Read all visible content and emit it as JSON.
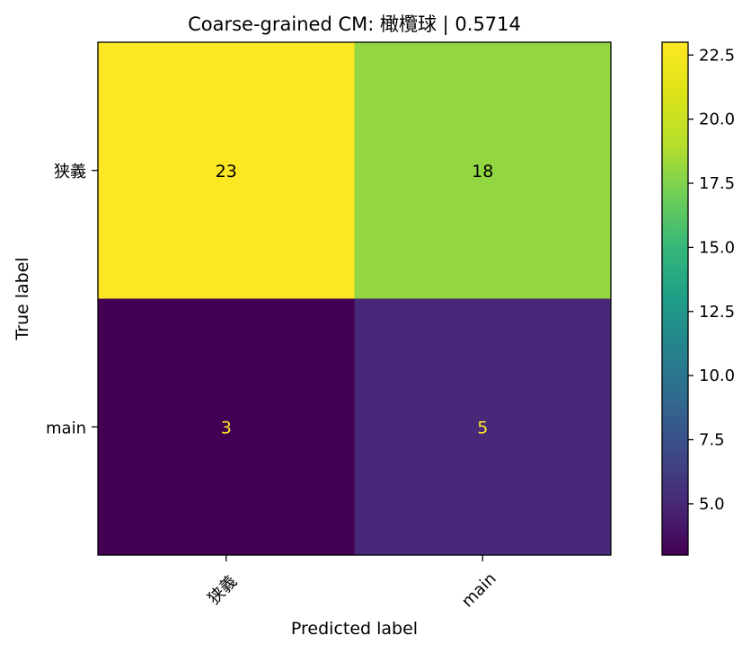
{
  "chart_data": {
    "type": "heatmap",
    "title": "Coarse-grained CM: 橄欖球 | 0.5714",
    "xlabel": "Predicted label",
    "ylabel": "True label",
    "x_categories": [
      "狭義",
      "main"
    ],
    "y_categories": [
      "狭義",
      "main"
    ],
    "matrix": [
      [
        23,
        18
      ],
      [
        3,
        5
      ]
    ],
    "value_labels": [
      [
        "23",
        "18"
      ],
      [
        "3",
        "5"
      ]
    ],
    "colormap": "viridis",
    "color_range": [
      3,
      23
    ],
    "colorbar_ticks": [
      "5.0",
      "7.5",
      "10.0",
      "12.5",
      "15.0",
      "17.5",
      "20.0",
      "22.5"
    ],
    "colorbar_tick_values": [
      5,
      7.5,
      10,
      12.5,
      15,
      17.5,
      20,
      22.5
    ],
    "text_colors": {
      "light_cell": "#000000",
      "dark_cell": "#fde725"
    },
    "grid": false
  }
}
